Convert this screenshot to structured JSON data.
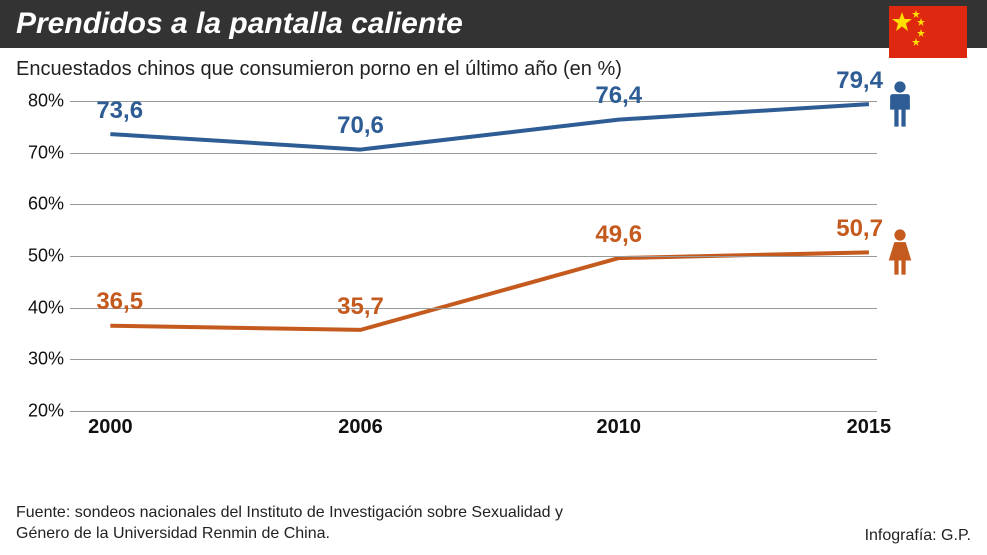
{
  "header": {
    "title": "Prendidos a la pantalla caliente",
    "bg_color": "#333333",
    "text_color": "#ffffff"
  },
  "flag": {
    "bg_color": "#de2910",
    "star_color": "#ffde00"
  },
  "subtitle": "Encuestados chinos que consumieron porno en el último año (en %)",
  "chart": {
    "type": "line",
    "ylim": [
      20,
      80
    ],
    "ytick_step": 10,
    "yticks": [
      20,
      30,
      40,
      50,
      60,
      70,
      80
    ],
    "x_categories": [
      "2000",
      "2006",
      "2010",
      "2015"
    ],
    "x_positions_pct": [
      5,
      36,
      68,
      99
    ],
    "series": [
      {
        "name": "male",
        "color": "#2e5c94",
        "stroke_width": 4,
        "values": [
          73.6,
          70.6,
          76.4,
          79.4
        ],
        "labels": [
          "73,6",
          "70,6",
          "76,4",
          "79,4"
        ],
        "icon": "male"
      },
      {
        "name": "female",
        "color": "#c55a1e",
        "stroke_width": 4,
        "values": [
          36.5,
          35.7,
          49.6,
          50.7
        ],
        "labels": [
          "36,5",
          "35,7",
          "49,6",
          "50,7"
        ],
        "icon": "female"
      }
    ],
    "grid_color": "#999999",
    "background_color": "#ffffff",
    "axis_font_size": 18,
    "value_font_size": 24
  },
  "footer": {
    "source": "Fuente: sondeos nacionales del Instituto de Investigación sobre Sexualidad y Género de la Universidad Renmin de China.",
    "credit": "Infografía: G.P."
  }
}
